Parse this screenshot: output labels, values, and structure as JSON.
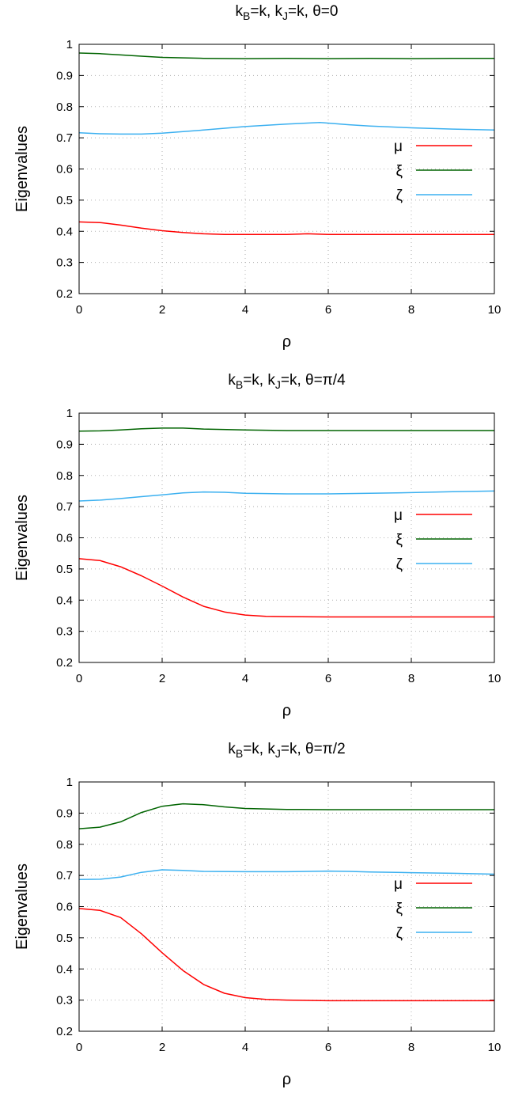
{
  "chart_data": [
    {
      "type": "line",
      "title": "k_B=k, k_J=k, θ=0",
      "title_parts": {
        "k1": "k",
        "sub1": "B",
        "mid": "=k, k",
        "sub2": "J",
        "tail": "=k, θ=0"
      },
      "xlabel": "ρ",
      "ylabel": "Eigenvalues",
      "xlim": [
        0,
        10
      ],
      "ylim": [
        0.2,
        1.0
      ],
      "xticks": [
        "0",
        "2",
        "4",
        "6",
        "8",
        "10"
      ],
      "yticks": [
        "0.2",
        "0.3",
        "0.4",
        "0.5",
        "0.6",
        "0.7",
        "0.8",
        "0.9",
        "1"
      ],
      "grid": true,
      "legend_position": "right",
      "series": [
        {
          "name": "μ",
          "color": "#ff0000",
          "points": [
            [
              0,
              0.43
            ],
            [
              0.5,
              0.428
            ],
            [
              1,
              0.42
            ],
            [
              1.5,
              0.41
            ],
            [
              2,
              0.402
            ],
            [
              2.5,
              0.396
            ],
            [
              3,
              0.392
            ],
            [
              3.5,
              0.39
            ],
            [
              4,
              0.39
            ],
            [
              5,
              0.39
            ],
            [
              5.5,
              0.392
            ],
            [
              6,
              0.39
            ],
            [
              7,
              0.39
            ],
            [
              8,
              0.39
            ],
            [
              9,
              0.39
            ],
            [
              10,
              0.39
            ]
          ]
        },
        {
          "name": "ξ",
          "color": "#006400",
          "points": [
            [
              0,
              0.972
            ],
            [
              0.5,
              0.97
            ],
            [
              1,
              0.966
            ],
            [
              1.5,
              0.962
            ],
            [
              2,
              0.958
            ],
            [
              3,
              0.955
            ],
            [
              4,
              0.954
            ],
            [
              5,
              0.955
            ],
            [
              6,
              0.954
            ],
            [
              7,
              0.955
            ],
            [
              8,
              0.954
            ],
            [
              9,
              0.955
            ],
            [
              10,
              0.955
            ]
          ]
        },
        {
          "name": "ζ",
          "color": "#3bb0f0",
          "points": [
            [
              0,
              0.716
            ],
            [
              0.5,
              0.713
            ],
            [
              1,
              0.712
            ],
            [
              1.5,
              0.712
            ],
            [
              2,
              0.715
            ],
            [
              3,
              0.725
            ],
            [
              4,
              0.736
            ],
            [
              5,
              0.744
            ],
            [
              5.8,
              0.749
            ],
            [
              6.5,
              0.742
            ],
            [
              7,
              0.738
            ],
            [
              8,
              0.732
            ],
            [
              9,
              0.728
            ],
            [
              10,
              0.725
            ]
          ]
        }
      ]
    },
    {
      "type": "line",
      "title": "k_B=k, k_J=k, θ=π/4",
      "title_parts": {
        "k1": "k",
        "sub1": "B",
        "mid": "=k, k",
        "sub2": "J",
        "tail": "=k, θ=π/4"
      },
      "xlabel": "ρ",
      "ylabel": "Eigenvalues",
      "xlim": [
        0,
        10
      ],
      "ylim": [
        0.2,
        1.0
      ],
      "xticks": [
        "0",
        "2",
        "4",
        "6",
        "8",
        "10"
      ],
      "yticks": [
        "0.2",
        "0.3",
        "0.4",
        "0.5",
        "0.6",
        "0.7",
        "0.8",
        "0.9",
        "1"
      ],
      "grid": true,
      "legend_position": "right",
      "series": [
        {
          "name": "μ",
          "color": "#ff0000",
          "points": [
            [
              0,
              0.533
            ],
            [
              0.5,
              0.527
            ],
            [
              1,
              0.507
            ],
            [
              1.5,
              0.478
            ],
            [
              2,
              0.445
            ],
            [
              2.5,
              0.41
            ],
            [
              3,
              0.38
            ],
            [
              3.5,
              0.362
            ],
            [
              4,
              0.352
            ],
            [
              4.5,
              0.348
            ],
            [
              5,
              0.347
            ],
            [
              6,
              0.346
            ],
            [
              7,
              0.346
            ],
            [
              8,
              0.346
            ],
            [
              9,
              0.346
            ],
            [
              10,
              0.346
            ]
          ]
        },
        {
          "name": "ξ",
          "color": "#006400",
          "points": [
            [
              0,
              0.942
            ],
            [
              0.5,
              0.943
            ],
            [
              1,
              0.946
            ],
            [
              1.5,
              0.95
            ],
            [
              2,
              0.952
            ],
            [
              2.5,
              0.952
            ],
            [
              3,
              0.949
            ],
            [
              4,
              0.946
            ],
            [
              5,
              0.944
            ],
            [
              6,
              0.944
            ],
            [
              7,
              0.944
            ],
            [
              8,
              0.944
            ],
            [
              9,
              0.944
            ],
            [
              10,
              0.944
            ]
          ]
        },
        {
          "name": "ζ",
          "color": "#3bb0f0",
          "points": [
            [
              0,
              0.718
            ],
            [
              0.5,
              0.721
            ],
            [
              1,
              0.726
            ],
            [
              1.5,
              0.732
            ],
            [
              2,
              0.738
            ],
            [
              2.5,
              0.744
            ],
            [
              3,
              0.747
            ],
            [
              3.5,
              0.746
            ],
            [
              4,
              0.743
            ],
            [
              5,
              0.741
            ],
            [
              6,
              0.741
            ],
            [
              7,
              0.743
            ],
            [
              8,
              0.745
            ],
            [
              9,
              0.748
            ],
            [
              10,
              0.75
            ]
          ]
        }
      ]
    },
    {
      "type": "line",
      "title": "k_B=k, k_J=k, θ=π/2",
      "title_parts": {
        "k1": "k",
        "sub1": "B",
        "mid": "=k, k",
        "sub2": "J",
        "tail": "=k, θ=π/2"
      },
      "xlabel": "ρ",
      "ylabel": "Eigenvalues",
      "xlim": [
        0,
        10
      ],
      "ylim": [
        0.2,
        1.0
      ],
      "xticks": [
        "0",
        "2",
        "4",
        "6",
        "8",
        "10"
      ],
      "yticks": [
        "0.2",
        "0.3",
        "0.4",
        "0.5",
        "0.6",
        "0.7",
        "0.8",
        "0.9",
        "1"
      ],
      "grid": true,
      "legend_position": "right",
      "series": [
        {
          "name": "μ",
          "color": "#ff0000",
          "points": [
            [
              0,
              0.594
            ],
            [
              0.5,
              0.588
            ],
            [
              1,
              0.565
            ],
            [
              1.5,
              0.513
            ],
            [
              2,
              0.452
            ],
            [
              2.5,
              0.395
            ],
            [
              3,
              0.35
            ],
            [
              3.5,
              0.322
            ],
            [
              4,
              0.308
            ],
            [
              4.5,
              0.302
            ],
            [
              5,
              0.3
            ],
            [
              6,
              0.298
            ],
            [
              7,
              0.298
            ],
            [
              8,
              0.298
            ],
            [
              9,
              0.298
            ],
            [
              10,
              0.298
            ]
          ]
        },
        {
          "name": "ξ",
          "color": "#006400",
          "points": [
            [
              0,
              0.85
            ],
            [
              0.5,
              0.855
            ],
            [
              1,
              0.872
            ],
            [
              1.5,
              0.902
            ],
            [
              2,
              0.922
            ],
            [
              2.5,
              0.93
            ],
            [
              3,
              0.927
            ],
            [
              3.5,
              0.92
            ],
            [
              4,
              0.915
            ],
            [
              5,
              0.912
            ],
            [
              6,
              0.911
            ],
            [
              7,
              0.911
            ],
            [
              8,
              0.911
            ],
            [
              9,
              0.911
            ],
            [
              10,
              0.911
            ]
          ]
        },
        {
          "name": "ζ",
          "color": "#3bb0f0",
          "points": [
            [
              0,
              0.687
            ],
            [
              0.5,
              0.688
            ],
            [
              1,
              0.695
            ],
            [
              1.5,
              0.71
            ],
            [
              2,
              0.718
            ],
            [
              2.5,
              0.716
            ],
            [
              3,
              0.713
            ],
            [
              4,
              0.712
            ],
            [
              5,
              0.712
            ],
            [
              6,
              0.714
            ],
            [
              6.5,
              0.713
            ],
            [
              7,
              0.711
            ],
            [
              8,
              0.709
            ],
            [
              9,
              0.707
            ],
            [
              10,
              0.704
            ]
          ]
        }
      ]
    }
  ]
}
